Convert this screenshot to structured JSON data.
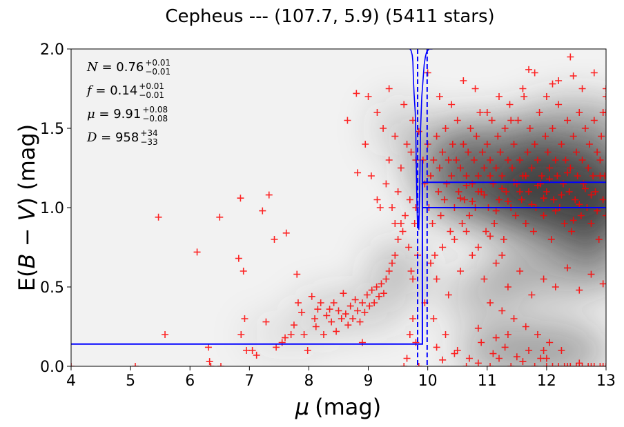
{
  "chart_data": {
    "type": "scatter",
    "title": "Cepheus --- (107.7, 5.9) (5411 stars)",
    "xlabel_symbol": "μ",
    "xlabel_unit": "(mag)",
    "ylabel_prefix": "E(",
    "ylabel_math": "B − V",
    "ylabel_suffix": ") (mag)",
    "xlim": [
      4,
      13
    ],
    "ylim": [
      0,
      2
    ],
    "xticks": [
      "4",
      "5",
      "6",
      "7",
      "8",
      "9",
      "10",
      "11",
      "12",
      "13"
    ],
    "yticks": [
      "0.0",
      "0.5",
      "1.0",
      "1.5",
      "2.0"
    ],
    "colors": {
      "points": "#ff0000",
      "model": "#0000ff",
      "background_dense": "#3a3a3a",
      "background_light": "#f2f2f2"
    },
    "annotations": [
      {
        "sym": "N",
        "val": "0.76",
        "up": "+0.01",
        "lo": "−0.01"
      },
      {
        "sym": "f",
        "val": "0.14",
        "up": "+0.01",
        "lo": "−0.01"
      },
      {
        "sym": "μ",
        "val": "9.91",
        "up": "+0.08",
        "lo": "−0.08"
      },
      {
        "sym": "D",
        "val": "958",
        "up": "+34",
        "lo": "−33"
      }
    ],
    "model": {
      "foreground_ebv": 0.14,
      "background_ebv_lower": 1.0,
      "background_ebv_upper": 1.16,
      "jump_mu": 9.91,
      "jump_mu_lower": 9.83,
      "jump_mu_upper": 9.99
    },
    "points": [
      [
        4.0,
        0.0
      ],
      [
        5.08,
        0.0
      ],
      [
        5.47,
        0.94
      ],
      [
        5.58,
        0.2
      ],
      [
        6.12,
        0.72
      ],
      [
        6.31,
        0.12
      ],
      [
        6.33,
        0.03
      ],
      [
        6.35,
        0.0
      ],
      [
        6.5,
        0.94
      ],
      [
        6.52,
        0.0
      ],
      [
        6.82,
        0.68
      ],
      [
        6.85,
        1.06
      ],
      [
        6.86,
        0.2
      ],
      [
        6.9,
        0.6
      ],
      [
        6.92,
        0.3
      ],
      [
        6.95,
        0.1
      ],
      [
        7.05,
        0.1
      ],
      [
        7.12,
        0.07
      ],
      [
        7.22,
        0.98
      ],
      [
        7.28,
        0.28
      ],
      [
        7.33,
        1.08
      ],
      [
        7.42,
        0.8
      ],
      [
        7.45,
        0.12
      ],
      [
        7.55,
        0.15
      ],
      [
        7.6,
        0.18
      ],
      [
        7.62,
        0.84
      ],
      [
        7.7,
        0.2
      ],
      [
        7.75,
        0.26
      ],
      [
        7.8,
        0.58
      ],
      [
        7.82,
        0.4
      ],
      [
        7.88,
        0.34
      ],
      [
        7.92,
        0.2
      ],
      [
        7.98,
        0.1
      ],
      [
        8.05,
        0.44
      ],
      [
        8.1,
        0.3
      ],
      [
        8.12,
        0.25
      ],
      [
        8.15,
        0.36
      ],
      [
        8.2,
        0.4
      ],
      [
        8.25,
        0.2
      ],
      [
        8.3,
        0.32
      ],
      [
        8.35,
        0.36
      ],
      [
        8.38,
        0.28
      ],
      [
        8.42,
        0.4
      ],
      [
        8.46,
        0.22
      ],
      [
        8.5,
        0.35
      ],
      [
        8.55,
        0.3
      ],
      [
        8.58,
        0.46
      ],
      [
        8.62,
        0.33
      ],
      [
        8.66,
        0.26
      ],
      [
        8.7,
        0.38
      ],
      [
        8.74,
        0.3
      ],
      [
        8.78,
        0.42
      ],
      [
        8.82,
        0.35
      ],
      [
        8.86,
        0.28
      ],
      [
        8.9,
        0.4
      ],
      [
        8.94,
        0.34
      ],
      [
        8.98,
        0.45
      ],
      [
        9.02,
        0.38
      ],
      [
        9.06,
        0.48
      ],
      [
        9.1,
        0.4
      ],
      [
        9.14,
        0.5
      ],
      [
        9.18,
        0.44
      ],
      [
        9.22,
        0.52
      ],
      [
        9.26,
        0.46
      ],
      [
        9.3,
        0.55
      ],
      [
        9.35,
        0.6
      ],
      [
        9.4,
        0.65
      ],
      [
        9.45,
        0.7
      ],
      [
        9.5,
        0.8
      ],
      [
        9.55,
        0.9
      ],
      [
        8.9,
        0.15
      ],
      [
        9.05,
        1.2
      ],
      [
        9.15,
        1.05
      ],
      [
        9.2,
        1.0
      ],
      [
        9.3,
        1.15
      ],
      [
        9.35,
        1.3
      ],
      [
        9.4,
        1.0
      ],
      [
        9.45,
        0.9
      ],
      [
        9.5,
        1.1
      ],
      [
        9.55,
        1.25
      ],
      [
        9.58,
        0.85
      ],
      [
        9.62,
        0.95
      ],
      [
        9.65,
        1.4
      ],
      [
        9.68,
        0.75
      ],
      [
        9.7,
        1.05
      ],
      [
        9.72,
        0.6
      ],
      [
        9.75,
        0.55
      ],
      [
        9.78,
        0.9
      ],
      [
        9.8,
        1.0
      ],
      [
        9.83,
        0.7
      ],
      [
        9.6,
        0.0
      ],
      [
        9.65,
        0.05
      ],
      [
        9.7,
        0.2
      ],
      [
        9.75,
        0.3
      ],
      [
        9.8,
        0.15
      ],
      [
        9.85,
        0.0
      ],
      [
        8.65,
        1.55
      ],
      [
        8.82,
        1.22
      ],
      [
        8.95,
        1.4
      ],
      [
        9.0,
        1.7
      ],
      [
        9.15,
        1.6
      ],
      [
        9.25,
        1.5
      ],
      [
        9.35,
        1.75
      ],
      [
        9.45,
        1.45
      ],
      [
        9.6,
        1.65
      ],
      [
        9.72,
        1.35
      ],
      [
        9.75,
        1.55
      ],
      [
        9.8,
        1.3
      ],
      [
        9.85,
        1.48
      ],
      [
        8.8,
        1.72
      ],
      [
        9.92,
        1.3
      ],
      [
        9.95,
        1.15
      ],
      [
        10.0,
        1.4
      ],
      [
        10.02,
        1.0
      ],
      [
        10.05,
        1.2
      ],
      [
        10.08,
        0.9
      ],
      [
        10.1,
        1.3
      ],
      [
        10.12,
        0.7
      ],
      [
        10.15,
        1.45
      ],
      [
        10.18,
        1.1
      ],
      [
        10.2,
        1.25
      ],
      [
        10.22,
        0.95
      ],
      [
        10.25,
        1.35
      ],
      [
        10.28,
        1.05
      ],
      [
        10.3,
        1.5
      ],
      [
        10.32,
        1.15
      ],
      [
        10.35,
        1.3
      ],
      [
        10.38,
        0.85
      ],
      [
        10.4,
        1.2
      ],
      [
        10.42,
        1.4
      ],
      [
        10.45,
        1.0
      ],
      [
        10.48,
        1.3
      ],
      [
        10.5,
        1.55
      ],
      [
        10.52,
        1.1
      ],
      [
        10.55,
        1.25
      ],
      [
        10.58,
        0.9
      ],
      [
        10.6,
        1.4
      ],
      [
        10.62,
        1.05
      ],
      [
        10.65,
        1.2
      ],
      [
        10.68,
        1.35
      ],
      [
        10.7,
        0.95
      ],
      [
        10.72,
        1.5
      ],
      [
        10.75,
        1.15
      ],
      [
        10.78,
        1.3
      ],
      [
        10.8,
        1.0
      ],
      [
        10.82,
        1.45
      ],
      [
        10.85,
        1.2
      ],
      [
        10.88,
        1.6
      ],
      [
        10.9,
        1.1
      ],
      [
        10.92,
        1.35
      ],
      [
        10.95,
        1.25
      ],
      [
        10.98,
        0.85
      ],
      [
        11.0,
        1.4
      ],
      [
        11.02,
        1.0
      ],
      [
        11.05,
        1.3
      ],
      [
        11.08,
        1.55
      ],
      [
        11.1,
        1.15
      ],
      [
        11.12,
        0.9
      ],
      [
        11.15,
        1.25
      ],
      [
        11.18,
        1.45
      ],
      [
        11.2,
        1.05
      ],
      [
        11.22,
        1.35
      ],
      [
        11.25,
        1.2
      ],
      [
        11.28,
        0.8
      ],
      [
        11.3,
        1.5
      ],
      [
        11.32,
        1.1
      ],
      [
        11.35,
        1.3
      ],
      [
        11.38,
        1.65
      ],
      [
        11.4,
        1.0
      ],
      [
        11.42,
        1.25
      ],
      [
        11.45,
        1.4
      ],
      [
        11.48,
        0.95
      ],
      [
        11.5,
        1.15
      ],
      [
        11.52,
        1.55
      ],
      [
        11.55,
        1.3
      ],
      [
        11.58,
        1.05
      ],
      [
        11.6,
        1.2
      ],
      [
        11.62,
        1.7
      ],
      [
        11.65,
        0.9
      ],
      [
        11.68,
        1.35
      ],
      [
        11.7,
        1.1
      ],
      [
        11.72,
        1.5
      ],
      [
        11.75,
        1.25
      ],
      [
        11.78,
        0.85
      ],
      [
        11.8,
        1.4
      ],
      [
        11.82,
        1.0
      ],
      [
        11.85,
        1.3
      ],
      [
        11.88,
        1.6
      ],
      [
        11.9,
        1.15
      ],
      [
        11.92,
        1.2
      ],
      [
        11.95,
        0.95
      ],
      [
        11.98,
        1.45
      ],
      [
        12.0,
        1.1
      ],
      [
        12.02,
        1.35
      ],
      [
        12.05,
        1.25
      ],
      [
        12.08,
        0.8
      ],
      [
        12.1,
        1.5
      ],
      [
        12.12,
        1.05
      ],
      [
        12.15,
        1.3
      ],
      [
        12.18,
        1.2
      ],
      [
        12.2,
        1.65
      ],
      [
        12.22,
        1.0
      ],
      [
        12.25,
        1.4
      ],
      [
        12.28,
        1.15
      ],
      [
        12.3,
        0.9
      ],
      [
        12.32,
        1.3
      ],
      [
        12.35,
        1.55
      ],
      [
        12.38,
        1.1
      ],
      [
        12.4,
        1.25
      ],
      [
        12.42,
        0.85
      ],
      [
        12.45,
        1.45
      ],
      [
        12.48,
        1.05
      ],
      [
        12.5,
        1.35
      ],
      [
        12.52,
        1.2
      ],
      [
        12.55,
        1.6
      ],
      [
        12.58,
        0.95
      ],
      [
        12.6,
        1.3
      ],
      [
        12.62,
        1.15
      ],
      [
        12.65,
        1.5
      ],
      [
        12.68,
        1.0
      ],
      [
        12.7,
        1.25
      ],
      [
        12.72,
        1.4
      ],
      [
        12.75,
        0.9
      ],
      [
        12.78,
        1.2
      ],
      [
        12.8,
        1.55
      ],
      [
        12.82,
        1.1
      ],
      [
        12.85,
        1.35
      ],
      [
        12.88,
        0.8
      ],
      [
        12.9,
        1.3
      ],
      [
        12.92,
        1.45
      ],
      [
        12.95,
        1.05
      ],
      [
        12.98,
        1.2
      ],
      [
        13.0,
        1.6
      ],
      [
        13.0,
        0.95
      ],
      [
        13.0,
        1.75
      ],
      [
        12.9,
        1.2
      ],
      [
        12.85,
        0.98
      ],
      [
        12.75,
        1.08
      ],
      [
        12.65,
        1.12
      ],
      [
        12.55,
        1.02
      ],
      [
        12.45,
        0.92
      ],
      [
        12.35,
        1.22
      ],
      [
        12.25,
        1.08
      ],
      [
        12.15,
        0.98
      ],
      [
        12.05,
        1.18
      ],
      [
        11.95,
        1.06
      ],
      [
        11.85,
        1.14
      ],
      [
        11.75,
        1.02
      ],
      [
        11.65,
        1.2
      ],
      [
        11.55,
        1.1
      ],
      [
        11.45,
        1.16
      ],
      [
        11.35,
        1.04
      ],
      [
        11.25,
        1.12
      ],
      [
        11.15,
        0.98
      ],
      [
        11.05,
        1.2
      ],
      [
        10.95,
        1.08
      ],
      [
        10.85,
        1.1
      ],
      [
        10.75,
        1.04
      ],
      [
        10.65,
        1.14
      ],
      [
        10.55,
        1.06
      ],
      [
        10.0,
        1.85
      ],
      [
        10.2,
        1.7
      ],
      [
        10.4,
        1.65
      ],
      [
        10.6,
        1.8
      ],
      [
        10.8,
        1.75
      ],
      [
        11.0,
        1.6
      ],
      [
        11.2,
        1.7
      ],
      [
        11.4,
        1.55
      ],
      [
        11.6,
        1.75
      ],
      [
        11.8,
        1.85
      ],
      [
        12.0,
        1.7
      ],
      [
        12.2,
        1.8
      ],
      [
        12.4,
        1.95
      ],
      [
        12.6,
        1.75
      ],
      [
        12.8,
        1.85
      ],
      [
        13.0,
        1.7
      ],
      [
        11.7,
        1.87
      ],
      [
        12.1,
        1.78
      ],
      [
        12.45,
        1.83
      ],
      [
        12.95,
        1.6
      ],
      [
        10.55,
        0.6
      ],
      [
        10.75,
        0.7
      ],
      [
        10.95,
        0.55
      ],
      [
        11.15,
        0.65
      ],
      [
        11.35,
        0.5
      ],
      [
        11.55,
        0.6
      ],
      [
        11.75,
        0.45
      ],
      [
        11.95,
        0.55
      ],
      [
        12.15,
        0.5
      ],
      [
        12.35,
        0.62
      ],
      [
        12.55,
        0.48
      ],
      [
        12.75,
        0.58
      ],
      [
        12.95,
        0.52
      ],
      [
        11.05,
        0.4
      ],
      [
        11.25,
        0.35
      ],
      [
        11.45,
        0.3
      ],
      [
        11.65,
        0.25
      ],
      [
        11.85,
        0.2
      ],
      [
        12.05,
        0.15
      ],
      [
        12.25,
        0.1
      ],
      [
        10.1,
        0.3
      ],
      [
        10.3,
        0.2
      ],
      [
        10.5,
        0.1
      ],
      [
        10.7,
        0.05
      ],
      [
        10.9,
        0.15
      ],
      [
        11.1,
        0.08
      ],
      [
        11.3,
        0.12
      ],
      [
        11.5,
        0.06
      ],
      [
        11.7,
        0.1
      ],
      [
        11.9,
        0.05
      ],
      [
        11.2,
        0.05
      ],
      [
        11.4,
        0.0
      ],
      [
        11.6,
        0.03
      ],
      [
        11.8,
        0.0
      ],
      [
        12.0,
        0.0
      ],
      [
        12.1,
        0.0
      ],
      [
        12.2,
        0.0
      ],
      [
        12.3,
        0.0
      ],
      [
        12.4,
        0.0
      ],
      [
        12.5,
        0.0
      ],
      [
        12.6,
        0.0
      ],
      [
        12.7,
        0.0
      ],
      [
        12.8,
        0.0
      ],
      [
        12.9,
        0.0
      ],
      [
        13.0,
        0.0
      ],
      [
        12.0,
        0.05
      ],
      [
        12.35,
        0.0
      ],
      [
        12.55,
        0.02
      ],
      [
        12.75,
        0.0
      ],
      [
        12.95,
        0.0
      ],
      [
        10.65,
        0.0
      ],
      [
        10.85,
        0.02
      ],
      [
        11.05,
        0.0
      ],
      [
        10.45,
        0.08
      ],
      [
        10.25,
        0.04
      ],
      [
        10.15,
        0.12
      ],
      [
        11.95,
        0.1
      ],
      [
        11.15,
        0.18
      ],
      [
        10.85,
        0.24
      ],
      [
        11.35,
        0.2
      ],
      [
        9.95,
        0.4
      ],
      [
        10.15,
        0.55
      ],
      [
        10.35,
        0.45
      ],
      [
        10.05,
        0.65
      ],
      [
        10.25,
        0.75
      ],
      [
        10.45,
        0.8
      ],
      [
        10.65,
        0.85
      ],
      [
        10.85,
        0.75
      ],
      [
        11.05,
        0.82
      ],
      [
        11.25,
        0.7
      ]
    ]
  }
}
